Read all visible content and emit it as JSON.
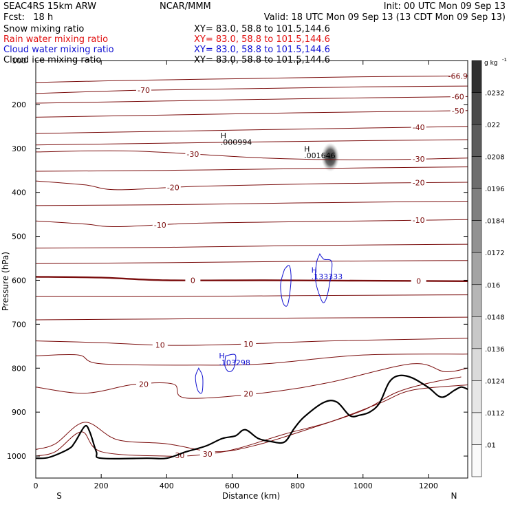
{
  "header": {
    "model": "SEAC4RS 15km ARW",
    "source": "NCAR/MMM",
    "init": "Init: 00 UTC Mon 09 Sep 13",
    "fcst": "Fcst:   18 h",
    "valid": "Valid: 18 UTC Mon 09 Sep 13 (13 CDT Mon 09 Sep 13)"
  },
  "fields": [
    {
      "label": "Snow mixing ratio",
      "xy": "XY=  83.0, 58.8 to 101.5,144.6",
      "color": "#000000"
    },
    {
      "label": "Rain water mixing ratio",
      "xy": "XY=  83.0, 58.8 to 101.5,144.6",
      "color": "#e01010"
    },
    {
      "label": "Cloud water mixing ratio",
      "xy": "XY=  83.0, 58.8 to 101.5,144.6",
      "color": "#1010d0"
    },
    {
      "label": "Cloud ice mixing ratio",
      "xy": "XY=  83.0, 58.8 to 101.5,144.6",
      "color": "#000000"
    }
  ],
  "chart_data": {
    "type": "cross-section contour",
    "xlabel": "Distance (km)",
    "ylabel": "Pressure (hPa)",
    "xlim": [
      0,
      1320
    ],
    "ylim": [
      1050,
      100
    ],
    "xticks": [
      0,
      200,
      400,
      600,
      800,
      1000,
      1200
    ],
    "yticks": [
      100,
      200,
      300,
      400,
      500,
      600,
      700,
      800,
      900,
      1000
    ],
    "x_end_labels": {
      "left": "S",
      "right": "N"
    },
    "colorbar": {
      "unit": "g kg",
      "unit_exp": "-1",
      "labels": [
        ".0232",
        ".022",
        ".0208",
        ".0196",
        ".0184",
        ".0172",
        ".016",
        ".0148",
        ".0136",
        ".0124",
        ".0112",
        ".01"
      ],
      "colors": [
        "#303030",
        "#4a4a4a",
        "#5c5c5c",
        "#6e6e6e",
        "#808080",
        "#929292",
        "#a4a4a4",
        "#b6b6b6",
        "#c8c8c8",
        "#dadada",
        "#e6e6e6",
        "#f0f0f0",
        "#fafafa"
      ]
    },
    "temperature_contours": [
      {
        "label": "-66.9",
        "points": [
          [
            0,
            150
          ],
          [
            300,
            145
          ],
          [
            650,
            141
          ],
          [
            1000,
            137
          ],
          [
            1320,
            135
          ]
        ]
      },
      {
        "label": "-70",
        "points": [
          [
            0,
            175
          ],
          [
            300,
            168
          ],
          [
            650,
            164
          ],
          [
            1000,
            160
          ],
          [
            1320,
            158
          ]
        ]
      },
      {
        "label": "-60",
        "points": [
          [
            0,
            197
          ],
          [
            400,
            192
          ],
          [
            800,
            187
          ],
          [
            1320,
            182
          ]
        ]
      },
      {
        "label": "-50",
        "points": [
          [
            0,
            229
          ],
          [
            400,
            224
          ],
          [
            800,
            219
          ],
          [
            1320,
            214
          ]
        ]
      },
      {
        "label": "-40",
        "points": [
          [
            0,
            266
          ],
          [
            400,
            261
          ],
          [
            800,
            256
          ],
          [
            1320,
            250
          ]
        ]
      },
      {
        "label": "",
        "points": [
          [
            0,
            292
          ],
          [
            400,
            288
          ],
          [
            800,
            284
          ],
          [
            1320,
            280
          ]
        ]
      },
      {
        "label": "-30",
        "points": [
          [
            0,
            308
          ],
          [
            300,
            306
          ],
          [
            700,
            322
          ],
          [
            1000,
            326
          ],
          [
            1320,
            322
          ]
        ]
      },
      {
        "label": "",
        "points": [
          [
            0,
            352
          ],
          [
            400,
            350
          ],
          [
            800,
            346
          ],
          [
            1320,
            342
          ]
        ]
      },
      {
        "label": "-20",
        "points": [
          [
            0,
            374
          ],
          [
            150,
            383
          ],
          [
            250,
            394
          ],
          [
            500,
            386
          ],
          [
            900,
            380
          ],
          [
            1320,
            377
          ]
        ]
      },
      {
        "label": "",
        "points": [
          [
            0,
            430
          ],
          [
            400,
            428
          ],
          [
            800,
            424
          ],
          [
            1320,
            420
          ]
        ]
      },
      {
        "label": "-10",
        "points": [
          [
            0,
            465
          ],
          [
            150,
            472
          ],
          [
            250,
            478
          ],
          [
            500,
            470
          ],
          [
            900,
            466
          ],
          [
            1320,
            462
          ]
        ]
      },
      {
        "label": "",
        "points": [
          [
            0,
            527
          ],
          [
            400,
            525
          ],
          [
            800,
            521
          ],
          [
            1320,
            518
          ]
        ]
      },
      {
        "label": "",
        "points": [
          [
            0,
            562
          ],
          [
            400,
            560
          ],
          [
            800,
            557
          ],
          [
            1320,
            555
          ]
        ]
      },
      {
        "label": "0",
        "bold": true,
        "points": [
          [
            0,
            592
          ],
          [
            200,
            594
          ],
          [
            400,
            600
          ],
          [
            700,
            600
          ],
          [
            1000,
            601
          ],
          [
            1320,
            602
          ]
        ]
      },
      {
        "label": "",
        "points": [
          [
            0,
            637
          ],
          [
            400,
            637
          ],
          [
            800,
            635
          ],
          [
            1320,
            633
          ]
        ]
      },
      {
        "label": "",
        "points": [
          [
            0,
            690
          ],
          [
            400,
            688
          ],
          [
            800,
            686
          ],
          [
            1320,
            684
          ]
        ]
      },
      {
        "label": "10",
        "points": [
          [
            0,
            738
          ],
          [
            200,
            742
          ],
          [
            400,
            748
          ],
          [
            600,
            746
          ],
          [
            900,
            738
          ],
          [
            1320,
            732
          ]
        ]
      },
      {
        "label": "",
        "points": [
          [
            0,
            772
          ],
          [
            130,
            770
          ],
          [
            200,
            790
          ],
          [
            500,
            793
          ],
          [
            700,
            790
          ],
          [
            1000,
            770
          ],
          [
            1320,
            768
          ]
        ]
      },
      {
        "label": "20",
        "points": [
          [
            0,
            843
          ],
          [
            150,
            857
          ],
          [
            300,
            837
          ],
          [
            420,
            836
          ],
          [
            460,
            868
          ],
          [
            700,
            856
          ],
          [
            900,
            832
          ],
          [
            1150,
            790
          ],
          [
            1250,
            808
          ],
          [
            1320,
            800
          ]
        ]
      },
      {
        "label": "",
        "points": [
          [
            0,
            985
          ],
          [
            60,
            972
          ],
          [
            150,
            923
          ],
          [
            250,
            963
          ],
          [
            400,
            972
          ],
          [
            550,
            990
          ],
          [
            680,
            974
          ],
          [
            860,
            932
          ],
          [
            1000,
            896
          ],
          [
            1100,
            856
          ],
          [
            1200,
            834
          ],
          [
            1300,
            820
          ]
        ]
      },
      {
        "label": "30",
        "points": [
          [
            0,
            1000
          ],
          [
            60,
            990
          ],
          [
            140,
            945
          ],
          [
            200,
            990
          ],
          [
            400,
            1000
          ],
          [
            520,
            996
          ],
          [
            620,
            982
          ],
          [
            760,
            950
          ],
          [
            900,
            922
          ],
          [
            1050,
            880
          ],
          [
            1150,
            850
          ],
          [
            1320,
            838
          ]
        ]
      }
    ],
    "terrain_pressure": [
      [
        0,
        1005
      ],
      [
        40,
        1003
      ],
      [
        100,
        984
      ],
      [
        120,
        968
      ],
      [
        150,
        932
      ],
      [
        165,
        945
      ],
      [
        185,
        990
      ],
      [
        200,
        1005
      ],
      [
        340,
        1005
      ],
      [
        400,
        1005
      ],
      [
        460,
        990
      ],
      [
        520,
        977
      ],
      [
        570,
        960
      ],
      [
        610,
        954
      ],
      [
        640,
        940
      ],
      [
        680,
        960
      ],
      [
        720,
        967
      ],
      [
        760,
        968
      ],
      [
        790,
        937
      ],
      [
        820,
        911
      ],
      [
        880,
        878
      ],
      [
        920,
        877
      ],
      [
        960,
        908
      ],
      [
        990,
        907
      ],
      [
        1020,
        900
      ],
      [
        1050,
        880
      ],
      [
        1080,
        832
      ],
      [
        1110,
        817
      ],
      [
        1150,
        822
      ],
      [
        1200,
        844
      ],
      [
        1240,
        866
      ],
      [
        1280,
        850
      ],
      [
        1300,
        843
      ],
      [
        1320,
        848
      ]
    ],
    "cloud_water_contours": [
      [
        [
          760,
          575
        ],
        [
          775,
          567
        ],
        [
          780,
          600
        ],
        [
          770,
          655
        ],
        [
          755,
          650
        ],
        [
          748,
          610
        ],
        [
          760,
          575
        ]
      ],
      [
        [
          868,
          540
        ],
        [
          880,
          552
        ],
        [
          905,
          560
        ],
        [
          895,
          620
        ],
        [
          882,
          650
        ],
        [
          870,
          640
        ],
        [
          855,
          600
        ],
        [
          858,
          560
        ],
        [
          868,
          540
        ]
      ],
      [
        [
          498,
          800
        ],
        [
          510,
          820
        ],
        [
          508,
          855
        ],
        [
          495,
          850
        ],
        [
          488,
          820
        ],
        [
          498,
          800
        ]
      ],
      [
        [
          580,
          772
        ],
        [
          610,
          770
        ],
        [
          605,
          800
        ],
        [
          590,
          808
        ],
        [
          578,
          795
        ],
        [
          580,
          772
        ]
      ]
    ],
    "snow_blob": {
      "x": 900,
      "p": 320
    },
    "annotations": [
      {
        "text": "H",
        "x": 565,
        "p": 277
      },
      {
        "text": ".000994",
        "x": 565,
        "p": 292
      },
      {
        "text": "H",
        "x": 820,
        "p": 307
      },
      {
        "text": ".001646",
        "x": 820,
        "p": 322
      },
      {
        "text": "H",
        "x": 842,
        "p": 583,
        "color": "#1010d0"
      },
      {
        "text": ".133333",
        "x": 842,
        "p": 598,
        "color": "#1010d0"
      },
      {
        "text": "H",
        "x": 560,
        "p": 778,
        "color": "#1010d0"
      },
      {
        "text": ".103298",
        "x": 560,
        "p": 793,
        "color": "#1010d0"
      }
    ]
  }
}
